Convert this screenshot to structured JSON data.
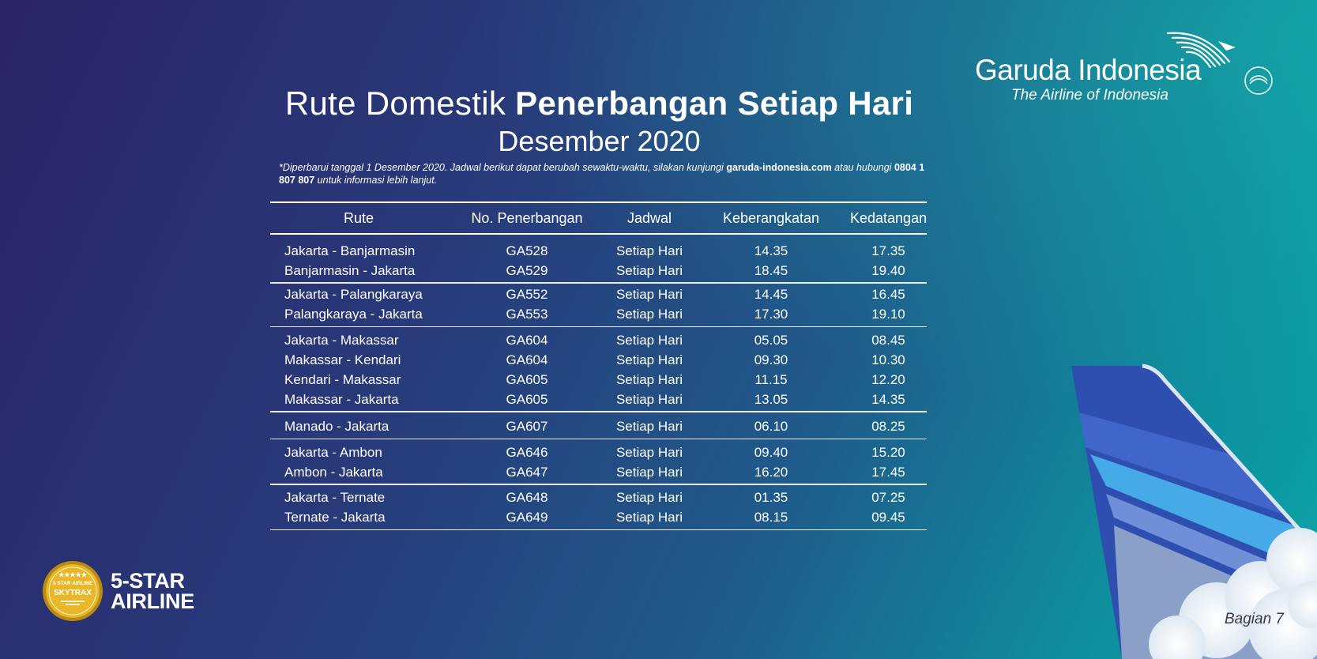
{
  "title": {
    "normal": "Rute Domestik",
    "bold": "Penerbangan Setiap Hari",
    "subtitle": "Desember 2020"
  },
  "note": {
    "part1": "*Diperbarui tanggal 1 Desember 2020. Jadwal berikut dapat berubah sewaktu-waktu, silakan kunjungi",
    "website": "garuda-indonesia.com",
    "part2": "atau hubungi",
    "phone": "0804 1 807 807",
    "part3": "untuk informasi lebih lanjut."
  },
  "logo": {
    "name": "Garuda Indonesia",
    "tagline": "The Airline of Indonesia",
    "alliance": "SKYTEAM"
  },
  "table": {
    "headers": [
      "Rute",
      "No. Penerbangan",
      "Jadwal",
      "Keberangkatan",
      "Kedatangan"
    ],
    "groups": [
      [
        {
          "route": "Jakarta - Banjarmasin",
          "flight": "GA528",
          "schedule": "Setiap Hari",
          "dep": "14.35",
          "arr": "17.35"
        },
        {
          "route": "Banjarmasin - Jakarta",
          "flight": "GA529",
          "schedule": "Setiap Hari",
          "dep": "18.45",
          "arr": "19.40"
        }
      ],
      [
        {
          "route": "Jakarta - Palangkaraya",
          "flight": "GA552",
          "schedule": "Setiap Hari",
          "dep": "14.45",
          "arr": "16.45"
        },
        {
          "route": "Palangkaraya - Jakarta",
          "flight": "GA553",
          "schedule": "Setiap Hari",
          "dep": "17.30",
          "arr": "19.10"
        }
      ],
      [
        {
          "route": "Jakarta - Makassar",
          "flight": "GA604",
          "schedule": "Setiap Hari",
          "dep": "05.05",
          "arr": "08.45"
        },
        {
          "route": "Makassar - Kendari",
          "flight": "GA604",
          "schedule": "Setiap Hari",
          "dep": "09.30",
          "arr": "10.30"
        },
        {
          "route": "Kendari - Makassar",
          "flight": "GA605",
          "schedule": "Setiap Hari",
          "dep": "11.15",
          "arr": "12.20"
        },
        {
          "route": "Makassar - Jakarta",
          "flight": "GA605",
          "schedule": "Setiap Hari",
          "dep": "13.05",
          "arr": "14.35"
        }
      ],
      [
        {
          "route": "Manado - Jakarta",
          "flight": "GA607",
          "schedule": "Setiap Hari",
          "dep": "06.10",
          "arr": "08.25"
        }
      ],
      [
        {
          "route": "Jakarta - Ambon",
          "flight": "GA646",
          "schedule": "Setiap Hari",
          "dep": "09.40",
          "arr": "15.20"
        },
        {
          "route": "Ambon - Jakarta",
          "flight": "GA647",
          "schedule": "Setiap Hari",
          "dep": "16.20",
          "arr": "17.45"
        }
      ],
      [
        {
          "route": "Jakarta - Ternate",
          "flight": "GA648",
          "schedule": "Setiap Hari",
          "dep": "01.35",
          "arr": "07.25"
        },
        {
          "route": "Ternate - Jakarta",
          "flight": "GA649",
          "schedule": "Setiap Hari",
          "dep": "08.15",
          "arr": "09.45"
        }
      ]
    ]
  },
  "badge": {
    "award_line1": "5-STAR",
    "award_line2": "AIRLINE",
    "seal_top": "5 STAR AIRLINE",
    "seal_mid": "SKYTRAX"
  },
  "page_label": "Bagian 7",
  "colors": {
    "bg_start": "#2b2466",
    "bg_end": "#0aa6a6",
    "tail_blue": "#2f4fb0",
    "tail_light": "#46a9e8",
    "badge_gold": "#e8b72a"
  }
}
